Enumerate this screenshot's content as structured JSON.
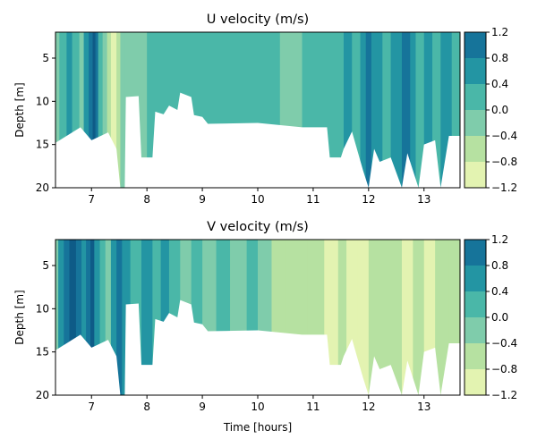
{
  "chart_data": [
    {
      "type": "contourf",
      "title": "U velocity (m/s)",
      "ylabel": "Depth [m]",
      "xlabel": "",
      "xlim": [
        6.35,
        13.65
      ],
      "ylim": [
        20,
        2
      ],
      "xticks": [
        7,
        8,
        9,
        10,
        11,
        12,
        13
      ],
      "yticks": [
        5,
        10,
        15,
        20
      ],
      "colorbar": {
        "levels": [
          -1.2,
          -0.8,
          -0.4,
          0.0,
          0.4,
          0.8,
          1.2
        ],
        "tick_labels": [
          "−1.2",
          "−0.8",
          "−0.4",
          "0.0",
          "0.4",
          "0.8",
          "1.2"
        ],
        "colors": [
          "#e3f3b1",
          "#b6e1a1",
          "#7fccab",
          "#4ab7a8",
          "#2395a3",
          "#16749a",
          "#0e5b87"
        ]
      },
      "data_bottom": [
        [
          6.35,
          14.8
        ],
        [
          6.6,
          13.8
        ],
        [
          6.8,
          13.0
        ],
        [
          7.0,
          14.5
        ],
        [
          7.3,
          13.6
        ],
        [
          7.45,
          15.5
        ],
        [
          7.52,
          20
        ],
        [
          7.6,
          20
        ],
        [
          7.62,
          9.5
        ],
        [
          7.85,
          9.4
        ],
        [
          7.9,
          16.5
        ],
        [
          8.1,
          16.5
        ],
        [
          8.15,
          11.2
        ],
        [
          8.3,
          11.5
        ],
        [
          8.4,
          10.5
        ],
        [
          8.55,
          11.0
        ],
        [
          8.6,
          9.0
        ],
        [
          8.8,
          9.5
        ],
        [
          8.85,
          11.6
        ],
        [
          9.0,
          11.8
        ],
        [
          9.1,
          12.6
        ],
        [
          10.0,
          12.5
        ],
        [
          10.8,
          13.0
        ],
        [
          11.25,
          13.0
        ],
        [
          11.3,
          16.5
        ],
        [
          11.5,
          16.5
        ],
        [
          11.55,
          15.5
        ],
        [
          11.7,
          13.5
        ],
        [
          11.9,
          18.0
        ],
        [
          12.0,
          20
        ],
        [
          12.1,
          15.5
        ],
        [
          12.2,
          17.0
        ],
        [
          12.4,
          16.5
        ],
        [
          12.6,
          20
        ],
        [
          12.7,
          16.0
        ],
        [
          12.9,
          20
        ],
        [
          13.0,
          15.0
        ],
        [
          13.2,
          14.5
        ],
        [
          13.3,
          20
        ],
        [
          13.45,
          14.0
        ],
        [
          13.65,
          14.0
        ]
      ],
      "annotations": []
    },
    {
      "type": "contourf",
      "title": "V velocity (m/s)",
      "ylabel": "Depth [m]",
      "xlabel": "Time [hours]",
      "xlim": [
        6.35,
        13.65
      ],
      "ylim": [
        20,
        2
      ],
      "xticks": [
        7,
        8,
        9,
        10,
        11,
        12,
        13
      ],
      "yticks": [
        5,
        10,
        15,
        20
      ],
      "colorbar": {
        "levels": [
          -1.2,
          -0.8,
          -0.4,
          0.0,
          0.4,
          0.8,
          1.2
        ],
        "tick_labels": [
          "−1.2",
          "−0.8",
          "−0.4",
          "0.0",
          "0.4",
          "0.8",
          "1.2"
        ],
        "colors": [
          "#e3f3b1",
          "#b6e1a1",
          "#7fccab",
          "#4ab7a8",
          "#2395a3",
          "#16749a",
          "#0e5b87"
        ]
      },
      "data_bottom": [
        [
          6.35,
          14.8
        ],
        [
          6.6,
          13.8
        ],
        [
          6.8,
          13.0
        ],
        [
          7.0,
          14.5
        ],
        [
          7.3,
          13.6
        ],
        [
          7.45,
          15.5
        ],
        [
          7.52,
          20
        ],
        [
          7.6,
          20
        ],
        [
          7.62,
          9.5
        ],
        [
          7.85,
          9.4
        ],
        [
          7.9,
          16.5
        ],
        [
          8.1,
          16.5
        ],
        [
          8.15,
          11.2
        ],
        [
          8.3,
          11.5
        ],
        [
          8.4,
          10.5
        ],
        [
          8.55,
          11.0
        ],
        [
          8.6,
          9.0
        ],
        [
          8.8,
          9.5
        ],
        [
          8.85,
          11.6
        ],
        [
          9.0,
          11.8
        ],
        [
          9.1,
          12.6
        ],
        [
          10.0,
          12.5
        ],
        [
          10.8,
          13.0
        ],
        [
          11.25,
          13.0
        ],
        [
          11.3,
          16.5
        ],
        [
          11.5,
          16.5
        ],
        [
          11.55,
          15.5
        ],
        [
          11.7,
          13.5
        ],
        [
          11.9,
          18.0
        ],
        [
          12.0,
          20
        ],
        [
          12.1,
          15.5
        ],
        [
          12.2,
          17.0
        ],
        [
          12.4,
          16.5
        ],
        [
          12.6,
          20
        ],
        [
          12.7,
          16.0
        ],
        [
          12.9,
          20
        ],
        [
          13.0,
          15.0
        ],
        [
          13.2,
          14.5
        ],
        [
          13.3,
          20
        ],
        [
          13.45,
          14.0
        ],
        [
          13.65,
          14.0
        ]
      ],
      "annotations": []
    }
  ]
}
